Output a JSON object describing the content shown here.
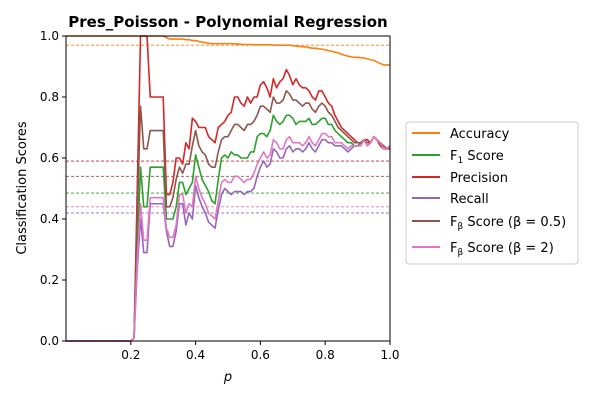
{
  "chart_data": {
    "type": "line",
    "title": "Pres_Poisson - Polynomial Regression",
    "xlabel": "p",
    "ylabel": "Classification Scores",
    "xlim": [
      0.0,
      1.0
    ],
    "ylim": [
      0.0,
      1.0
    ],
    "xticks": [
      "0.2",
      "0.4",
      "0.6",
      "0.8",
      "1.0"
    ],
    "xtick_values": [
      0.2,
      0.4,
      0.6,
      0.8,
      1.0
    ],
    "yticks": [
      "0.0",
      "0.2",
      "0.4",
      "0.6",
      "0.8",
      "1.0"
    ],
    "ytick_values": [
      0.0,
      0.2,
      0.4,
      0.6,
      0.8,
      1.0
    ],
    "grid": false,
    "legend_position": "right-outside",
    "x": [
      0.0,
      0.02,
      0.04,
      0.06,
      0.08,
      0.1,
      0.12,
      0.14,
      0.16,
      0.18,
      0.2,
      0.21,
      0.22,
      0.23,
      0.24,
      0.25,
      0.26,
      0.28,
      0.3,
      0.31,
      0.32,
      0.33,
      0.34,
      0.35,
      0.36,
      0.37,
      0.38,
      0.39,
      0.4,
      0.41,
      0.42,
      0.43,
      0.44,
      0.45,
      0.46,
      0.47,
      0.48,
      0.49,
      0.5,
      0.51,
      0.52,
      0.53,
      0.54,
      0.55,
      0.56,
      0.57,
      0.58,
      0.59,
      0.6,
      0.61,
      0.62,
      0.63,
      0.64,
      0.65,
      0.66,
      0.67,
      0.68,
      0.69,
      0.7,
      0.71,
      0.72,
      0.73,
      0.74,
      0.75,
      0.76,
      0.77,
      0.78,
      0.79,
      0.8,
      0.81,
      0.82,
      0.83,
      0.84,
      0.85,
      0.86,
      0.87,
      0.88,
      0.89,
      0.9,
      0.91,
      0.92,
      0.93,
      0.94,
      0.95,
      0.96,
      0.97,
      0.98,
      0.99,
      1.0
    ],
    "series": [
      {
        "name": "Accuracy",
        "color": "#ff7f0e",
        "values": [
          1.0,
          1.0,
          1.0,
          1.0,
          1.0,
          1.0,
          1.0,
          1.0,
          1.0,
          1.0,
          1.0,
          1.0,
          1.0,
          1.0,
          1.0,
          1.0,
          1.0,
          1.0,
          1.0,
          0.995,
          0.99,
          0.99,
          0.99,
          0.99,
          0.99,
          0.988,
          0.988,
          0.985,
          0.985,
          0.982,
          0.98,
          0.978,
          0.976,
          0.975,
          0.975,
          0.975,
          0.975,
          0.975,
          0.975,
          0.975,
          0.974,
          0.974,
          0.973,
          0.972,
          0.972,
          0.972,
          0.971,
          0.971,
          0.971,
          0.971,
          0.971,
          0.971,
          0.97,
          0.97,
          0.97,
          0.97,
          0.97,
          0.97,
          0.968,
          0.967,
          0.966,
          0.965,
          0.964,
          0.962,
          0.96,
          0.96,
          0.958,
          0.957,
          0.955,
          0.952,
          0.95,
          0.947,
          0.945,
          0.94,
          0.937,
          0.934,
          0.932,
          0.93,
          0.93,
          0.929,
          0.928,
          0.925,
          0.922,
          0.92,
          0.915,
          0.91,
          0.905,
          0.905,
          0.905
        ]
      },
      {
        "name": "F1 Score",
        "color": "#2ca02c",
        "values": [
          0,
          0,
          0,
          0,
          0,
          0,
          0,
          0,
          0,
          0,
          0,
          0.01,
          0.3,
          0.57,
          0.44,
          0.44,
          0.57,
          0.57,
          0.57,
          0.4,
          0.4,
          0.4,
          0.44,
          0.52,
          0.52,
          0.48,
          0.5,
          0.52,
          0.61,
          0.57,
          0.53,
          0.51,
          0.49,
          0.46,
          0.45,
          0.53,
          0.6,
          0.61,
          0.6,
          0.62,
          0.61,
          0.61,
          0.6,
          0.6,
          0.6,
          0.62,
          0.62,
          0.67,
          0.68,
          0.68,
          0.67,
          0.69,
          0.74,
          0.72,
          0.71,
          0.72,
          0.74,
          0.74,
          0.73,
          0.71,
          0.72,
          0.72,
          0.72,
          0.73,
          0.71,
          0.71,
          0.72,
          0.73,
          0.73,
          0.71,
          0.71,
          0.69,
          0.68,
          0.67,
          0.66,
          0.65,
          0.65,
          0.64,
          0.64,
          0.65,
          0.66,
          0.65,
          0.65,
          0.67,
          0.66,
          0.65,
          0.64,
          0.63,
          0.64
        ]
      },
      {
        "name": "Precision",
        "color": "#d62728",
        "values": [
          0,
          0,
          0,
          0,
          0,
          0,
          0,
          0,
          0,
          0,
          0,
          0.01,
          0.5,
          1.0,
          1.0,
          1.0,
          0.8,
          0.8,
          0.8,
          0.48,
          0.48,
          0.52,
          0.6,
          0.6,
          0.58,
          0.65,
          0.63,
          0.73,
          0.72,
          0.7,
          0.7,
          0.7,
          0.67,
          0.66,
          0.65,
          0.7,
          0.71,
          0.72,
          0.74,
          0.75,
          0.8,
          0.8,
          0.78,
          0.77,
          0.8,
          0.78,
          0.8,
          0.8,
          0.84,
          0.85,
          0.83,
          0.8,
          0.86,
          0.83,
          0.85,
          0.86,
          0.89,
          0.87,
          0.84,
          0.86,
          0.84,
          0.83,
          0.83,
          0.82,
          0.8,
          0.79,
          0.82,
          0.82,
          0.8,
          0.78,
          0.77,
          0.74,
          0.72,
          0.7,
          0.69,
          0.68,
          0.67,
          0.66,
          0.65,
          0.65,
          0.66,
          0.66,
          0.65,
          0.67,
          0.66,
          0.64,
          0.63,
          0.63,
          0.63
        ]
      },
      {
        "name": "Recall",
        "color": "#9467bd",
        "values": [
          0,
          0,
          0,
          0,
          0,
          0,
          0,
          0,
          0,
          0,
          0,
          0.01,
          0.24,
          0.4,
          0.29,
          0.29,
          0.45,
          0.45,
          0.45,
          0.36,
          0.31,
          0.31,
          0.36,
          0.45,
          0.45,
          0.38,
          0.42,
          0.4,
          0.51,
          0.47,
          0.44,
          0.42,
          0.39,
          0.38,
          0.37,
          0.43,
          0.48,
          0.5,
          0.49,
          0.48,
          0.49,
          0.49,
          0.49,
          0.48,
          0.49,
          0.49,
          0.5,
          0.54,
          0.57,
          0.59,
          0.57,
          0.58,
          0.63,
          0.62,
          0.6,
          0.6,
          0.63,
          0.64,
          0.62,
          0.63,
          0.63,
          0.62,
          0.63,
          0.65,
          0.63,
          0.62,
          0.64,
          0.66,
          0.66,
          0.65,
          0.65,
          0.64,
          0.64,
          0.64,
          0.63,
          0.62,
          0.63,
          0.64,
          0.64,
          0.64,
          0.66,
          0.64,
          0.65,
          0.67,
          0.66,
          0.65,
          0.63,
          0.63,
          0.64
        ]
      },
      {
        "name": "Fβ Score (β=0.5)",
        "color": "#8c564b",
        "values": [
          0,
          0,
          0,
          0,
          0,
          0,
          0,
          0,
          0,
          0,
          0,
          0.01,
          0.42,
          0.77,
          0.63,
          0.63,
          0.69,
          0.69,
          0.69,
          0.44,
          0.44,
          0.47,
          0.53,
          0.57,
          0.55,
          0.58,
          0.58,
          0.64,
          0.69,
          0.64,
          0.62,
          0.61,
          0.58,
          0.57,
          0.57,
          0.62,
          0.66,
          0.67,
          0.67,
          0.69,
          0.71,
          0.71,
          0.7,
          0.69,
          0.71,
          0.71,
          0.72,
          0.74,
          0.77,
          0.77,
          0.76,
          0.75,
          0.8,
          0.78,
          0.78,
          0.79,
          0.82,
          0.81,
          0.79,
          0.79,
          0.78,
          0.77,
          0.78,
          0.78,
          0.76,
          0.75,
          0.77,
          0.78,
          0.77,
          0.75,
          0.74,
          0.72,
          0.7,
          0.69,
          0.68,
          0.67,
          0.66,
          0.65,
          0.65,
          0.65,
          0.66,
          0.65,
          0.65,
          0.67,
          0.66,
          0.65,
          0.64,
          0.63,
          0.64
        ]
      },
      {
        "name": "Fβ Score (β=2)",
        "color": "#e377c2",
        "values": [
          0,
          0,
          0,
          0,
          0,
          0,
          0,
          0,
          0,
          0,
          0,
          0.01,
          0.27,
          0.45,
          0.33,
          0.33,
          0.47,
          0.47,
          0.47,
          0.37,
          0.34,
          0.34,
          0.38,
          0.48,
          0.48,
          0.42,
          0.45,
          0.44,
          0.54,
          0.5,
          0.47,
          0.45,
          0.42,
          0.41,
          0.4,
          0.46,
          0.52,
          0.53,
          0.52,
          0.52,
          0.54,
          0.54,
          0.53,
          0.52,
          0.53,
          0.53,
          0.55,
          0.58,
          0.6,
          0.62,
          0.6,
          0.61,
          0.66,
          0.65,
          0.63,
          0.63,
          0.66,
          0.67,
          0.65,
          0.65,
          0.65,
          0.64,
          0.65,
          0.67,
          0.65,
          0.64,
          0.66,
          0.68,
          0.68,
          0.67,
          0.67,
          0.65,
          0.65,
          0.65,
          0.64,
          0.63,
          0.64,
          0.64,
          0.64,
          0.64,
          0.66,
          0.64,
          0.65,
          0.67,
          0.66,
          0.65,
          0.63,
          0.63,
          0.64
        ]
      }
    ],
    "reference_lines": [
      {
        "series": "Accuracy",
        "y": 0.97,
        "color": "#ff7f0e"
      },
      {
        "series": "Precision",
        "y": 0.59,
        "color": "#d62728"
      },
      {
        "series": "Fβ Score (β=0.5)",
        "y": 0.54,
        "color": "#8c564b"
      },
      {
        "series": "F1 Score",
        "y": 0.485,
        "color": "#2ca02c"
      },
      {
        "series": "Fβ Score (β=2)",
        "y": 0.44,
        "color": "#e377c2"
      },
      {
        "series": "Recall",
        "y": 0.42,
        "color": "#9467bd"
      }
    ]
  },
  "legend": {
    "items": [
      {
        "main": "Accuracy",
        "sub": "",
        "tail": "",
        "color": "#ff7f0e"
      },
      {
        "main": "F",
        "sub": "1",
        "tail": " Score",
        "color": "#2ca02c"
      },
      {
        "main": "Precision",
        "sub": "",
        "tail": "",
        "color": "#d62728"
      },
      {
        "main": "Recall",
        "sub": "",
        "tail": "",
        "color": "#9467bd"
      },
      {
        "main": "F",
        "sub": "β",
        "tail": " Score (β = 0.5)",
        "color": "#8c564b"
      },
      {
        "main": "F",
        "sub": "β",
        "tail": " Score (β = 2)",
        "color": "#e377c2"
      }
    ]
  }
}
